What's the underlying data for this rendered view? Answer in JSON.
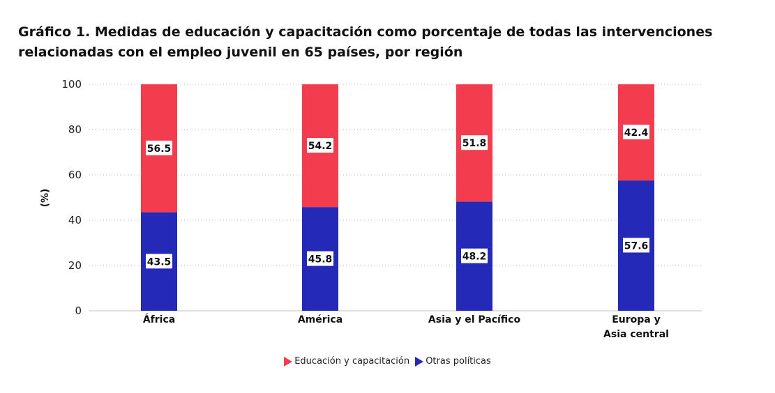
{
  "chart_data": {
    "type": "bar",
    "stacked": true,
    "title": "Gráfico 1. Medidas de educación y capacitación como porcentaje de todas las intervenciones relacionadas con el empleo juvenil en 65 países, por región",
    "xlabel": "",
    "ylabel": "(%)",
    "ylim": [
      0,
      100
    ],
    "yticks": [
      "0",
      "20",
      "40",
      "60",
      "80",
      "100"
    ],
    "grid": true,
    "categories": [
      [
        "África"
      ],
      [
        "América"
      ],
      [
        "Asia y el Pacífico"
      ],
      [
        "Europa y",
        "Asia central"
      ]
    ],
    "series": [
      {
        "name": "Otras políticas",
        "color": "#2529b8",
        "values": [
          43.5,
          45.8,
          48.2,
          57.6
        ],
        "labels": [
          "43.5",
          "45.8",
          "48.2",
          "57.6"
        ]
      },
      {
        "name": "Educación y capacitación",
        "color": "#f43c4f",
        "values": [
          56.5,
          54.2,
          51.8,
          42.4
        ],
        "labels": [
          "56.5",
          "54.2",
          "51.8",
          "42.4"
        ]
      }
    ],
    "legend": {
      "position": "bottom",
      "entries": [
        {
          "label": "Educación y capacitación",
          "color": "#f43c4f"
        },
        {
          "label": "Otras políticas",
          "color": "#2529b8"
        }
      ]
    }
  }
}
